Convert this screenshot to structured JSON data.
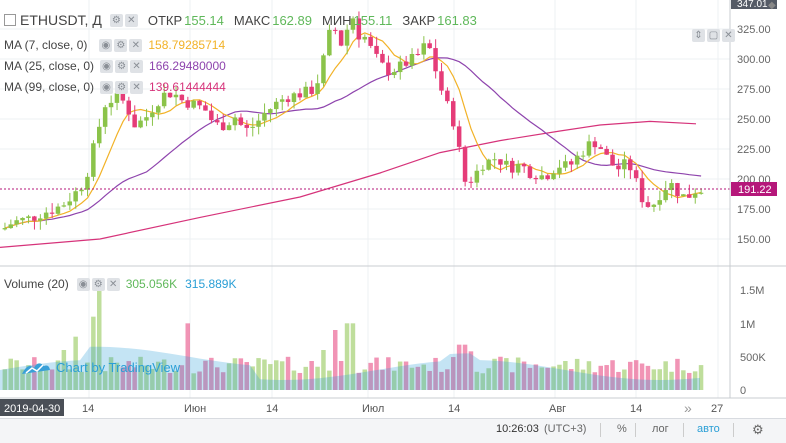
{
  "header": {
    "symbol": "ETHUSDT, Д",
    "open_label": "ОТКР",
    "open_value": "155.14",
    "high_label": "МАКС",
    "high_value": "162.89",
    "low_label": "МИН",
    "low_value": "155.11",
    "close_label": "ЗАКР",
    "close_value": "161.83"
  },
  "indicators": [
    {
      "label": "MA (7, close, 0)",
      "value": "158.79285714",
      "color": "#f2b227"
    },
    {
      "label": "MA (25, close, 0)",
      "value": "166.29480000",
      "color": "#8e44ad"
    },
    {
      "label": "MA (99, close, 0)",
      "value": "139.61444444",
      "color": "#d6337a"
    }
  ],
  "volume_legend": {
    "label": "Volume (20)",
    "value1": "305.056K",
    "value1_color": "#5fb85a",
    "value2": "315.889K",
    "value2_color": "#2a9fd6"
  },
  "price_axis": {
    "ticks": [
      "325.00",
      "300.00",
      "275.00",
      "250.00",
      "225.00",
      "200.00",
      "175.00",
      "150.00"
    ],
    "top_label": "347.01",
    "current": "191.22",
    "current_color": "#b5177a"
  },
  "volume_axis": {
    "ticks": [
      "1.5M",
      "1M",
      "500K",
      "0"
    ]
  },
  "x_axis": {
    "labels": [
      "2019-04-30",
      "14",
      "Июн",
      "14",
      "Июл",
      "14",
      "Авг",
      "14",
      "27"
    ]
  },
  "watermark": "Chart by TradingView",
  "toolbar": {
    "time": "10:26:03",
    "tz": "(UTC+3)",
    "percent": "%",
    "log": "лог",
    "auto": "авто"
  },
  "colors": {
    "up": "#8bc34a",
    "down": "#e53c78",
    "grid": "#eef0f3"
  },
  "chart_data": {
    "type": "candlestick",
    "x_start": "2019-04-30",
    "x_end": "2019-08-24",
    "ylim": [
      125,
      347
    ],
    "price_series": [
      {
        "name": "MA (7, close, 0)",
        "last": 158.79
      },
      {
        "name": "MA (25, close, 0)",
        "last": 166.29
      },
      {
        "name": "MA (99, close, 0)",
        "last": 139.61
      }
    ],
    "last_candle": {
      "open": 155.14,
      "high": 162.89,
      "low": 155.11,
      "close": 161.83
    },
    "volume_ylim": [
      0,
      1700000
    ]
  }
}
